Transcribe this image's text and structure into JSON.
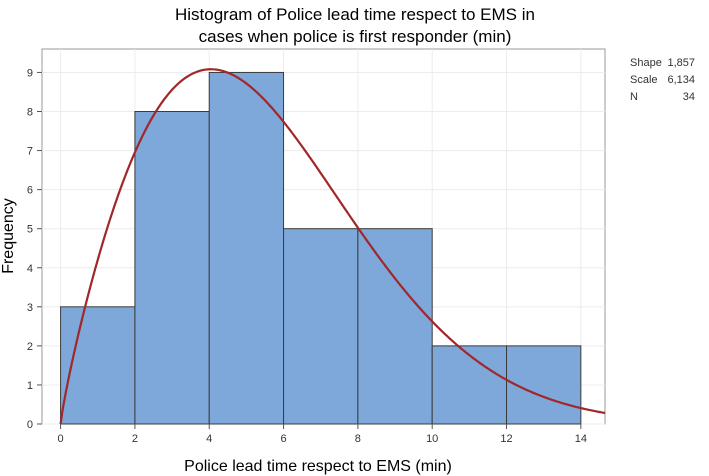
{
  "chart_data": {
    "type": "bar",
    "title_lines": [
      "Histogram of Police lead time respect to EMS in",
      "cases when police is first responder (min)"
    ],
    "xlabel": "Police lead time respect to EMS (min)",
    "ylabel": "Frequency",
    "bins": [
      {
        "start": 0,
        "end": 2,
        "count": 3
      },
      {
        "start": 2,
        "end": 4,
        "count": 8
      },
      {
        "start": 4,
        "end": 6,
        "count": 9
      },
      {
        "start": 6,
        "end": 8,
        "count": 5
      },
      {
        "start": 8,
        "end": 10,
        "count": 5
      },
      {
        "start": 10,
        "end": 12,
        "count": 2
      },
      {
        "start": 12,
        "end": 14,
        "count": 2
      }
    ],
    "xlim": [
      -0.5,
      14.65
    ],
    "ylim": [
      0,
      9.6
    ],
    "xticks": [
      0,
      2,
      4,
      6,
      8,
      10,
      12,
      14
    ],
    "yticks": [
      0,
      1,
      2,
      3,
      4,
      5,
      6,
      7,
      8,
      9
    ],
    "grid": true,
    "fit": {
      "distribution": "weibull",
      "shape": 1.857,
      "scale": 6.134,
      "n": 34,
      "bin_width": 2,
      "color": "#a0282a"
    },
    "bar_color": "#7ea7da",
    "bar_edge_color": "#3b3b3b",
    "stats": [
      {
        "label": "Shape",
        "value": "1,857"
      },
      {
        "label": "Scale",
        "value": "6,134"
      },
      {
        "label": "N",
        "value": "34"
      }
    ]
  }
}
